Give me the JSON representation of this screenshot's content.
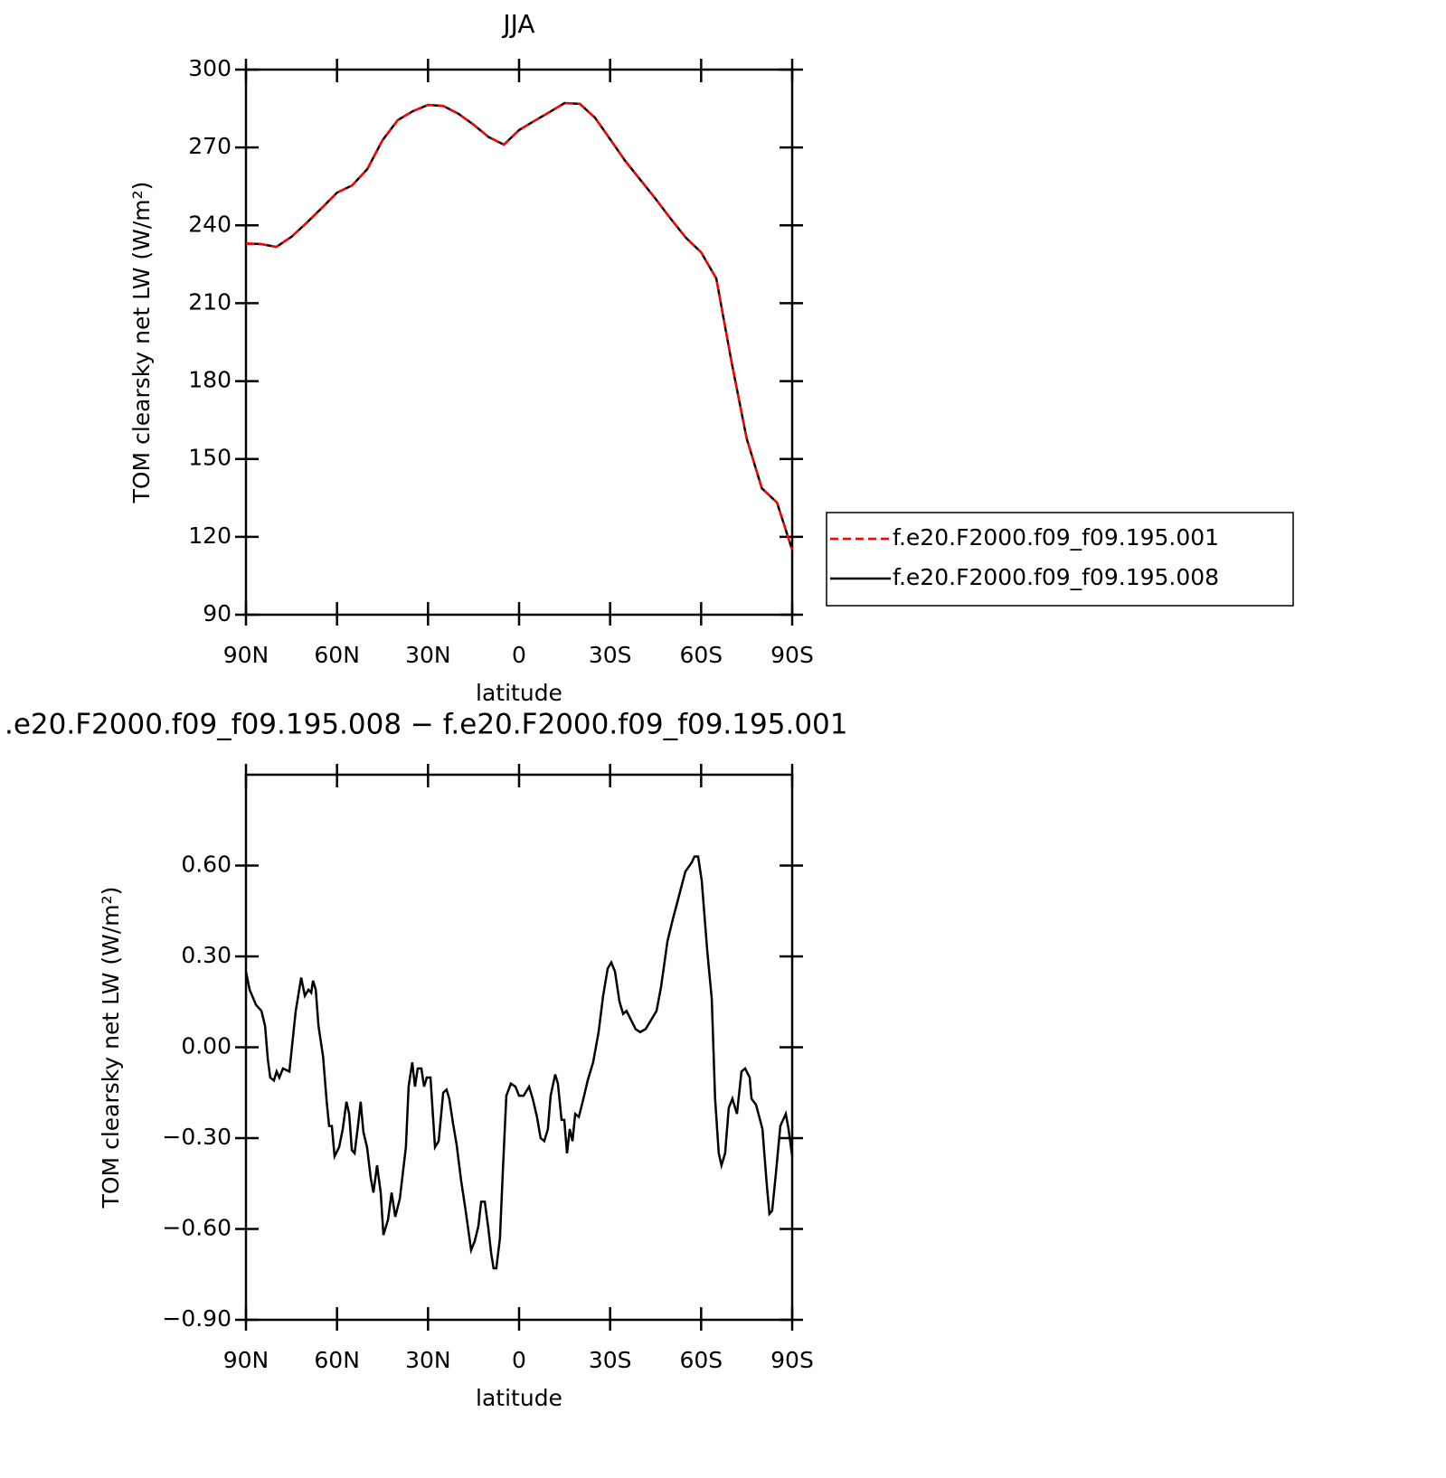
{
  "chart_data": [
    {
      "type": "line",
      "title": "JJA",
      "xlabel": "latitude",
      "ylabel": "TOM clearsky net LW (W/m²)",
      "xlim": [
        90,
        -90
      ],
      "xticks": [
        {
          "value": 90,
          "label": "90N"
        },
        {
          "value": 60,
          "label": "60N"
        },
        {
          "value": 30,
          "label": "30N"
        },
        0,
        {
          "value": -30,
          "label": "30S"
        },
        {
          "value": -60,
          "label": "60S"
        },
        {
          "value": -90,
          "label": "90S"
        }
      ],
      "ylim": [
        90,
        300
      ],
      "yticks": [
        90,
        120,
        150,
        180,
        210,
        240,
        270,
        300
      ],
      "x": [
        90,
        85,
        80,
        75,
        70,
        65,
        60,
        55,
        50,
        45,
        40,
        35,
        30,
        25,
        20,
        15,
        10,
        5,
        0,
        -5,
        -10,
        -15,
        -20,
        -25,
        -30,
        -35,
        -40,
        -45,
        -50,
        -55,
        -60,
        -65,
        -70,
        -75,
        -80,
        -85,
        -90
      ],
      "legend": "right",
      "series": [
        {
          "name": "f.e20.F2000.f09_f09.195.001",
          "color": "#ff0000",
          "linestyle": "dashed",
          "values": [
            233,
            232.8,
            231.7,
            235.6,
            241,
            246.7,
            252.6,
            255.4,
            261.7,
            272.8,
            280.5,
            284,
            286.4,
            286,
            283,
            278.8,
            274,
            271.1,
            276.7,
            280.2,
            283.6,
            287.1,
            286.8,
            281.5,
            273.2,
            264.8,
            257.5,
            250.2,
            242.5,
            235.2,
            229.6,
            219.5,
            187.5,
            157.9,
            138.7,
            133.2,
            115
          ]
        },
        {
          "name": "f.e20.F2000.f09_f09.195.008",
          "color": "#000000",
          "linestyle": "solid",
          "values": [
            233,
            232.8,
            231.7,
            235.6,
            241,
            246.7,
            252.6,
            255.4,
            261.7,
            272.8,
            280.5,
            284,
            286.4,
            286,
            283,
            278.8,
            274,
            271.1,
            276.7,
            280.2,
            283.6,
            287.1,
            286.8,
            281.5,
            273.2,
            264.8,
            257.5,
            250.2,
            242.5,
            235.2,
            229.6,
            219.5,
            187.5,
            157.9,
            138.7,
            133.2,
            115
          ]
        }
      ]
    },
    {
      "type": "line",
      "title": ".e20.F2000.f09_f09.195.008 − f.e20.F2000.f09_f09.195.001",
      "xlabel": "latitude",
      "ylabel": "TOM clearsky net LW (W/m²)",
      "xlim": [
        90,
        -90
      ],
      "xticks": [
        {
          "value": 90,
          "label": "90N"
        },
        {
          "value": 60,
          "label": "60N"
        },
        {
          "value": 30,
          "label": "30N"
        },
        0,
        {
          "value": -30,
          "label": "30S"
        },
        {
          "value": -60,
          "label": "60S"
        },
        {
          "value": -90,
          "label": "90S"
        }
      ],
      "ylim": [
        -0.9,
        0.9
      ],
      "yticks": [
        {
          "value": -0.9,
          "label": "−0.90"
        },
        {
          "value": -0.6,
          "label": "−0.60"
        },
        {
          "value": -0.3,
          "label": "−0.30"
        },
        {
          "value": 0,
          "label": "0.00"
        },
        {
          "value": 0.3,
          "label": "0.30"
        },
        {
          "value": 0.6,
          "label": "0.60"
        }
      ],
      "x": [
        90,
        88.8,
        86.7,
        84.9,
        83.7,
        82.8,
        82.0,
        80.8,
        79.9,
        79.0,
        77.8,
        75.7,
        73.6,
        71.8,
        70.6,
        69.4,
        68.5,
        67.9,
        67.0,
        66.1,
        64.6,
        63.4,
        62.6,
        61.7,
        60.8,
        59.3,
        58.1,
        56.9,
        56.0,
        55.1,
        54.2,
        53.1,
        52.2,
        51.3,
        50.1,
        48.9,
        48.0,
        46.8,
        45.6,
        44.7,
        43.2,
        42.0,
        40.8,
        39.3,
        37.3,
        36.4,
        35.2,
        34.3,
        33.4,
        32.2,
        31.3,
        30.4,
        29.2,
        27.7,
        26.5,
        25.0,
        23.9,
        23.0,
        21.8,
        20.6,
        19.1,
        17.6,
        15.8,
        14.6,
        13.4,
        12.5,
        11.3,
        10.1,
        9.2,
        8.4,
        7.5,
        6.3,
        5.4,
        4.2,
        2.7,
        1.2,
        0,
        -1.5,
        -3.3,
        -4.5,
        -5.9,
        -7.1,
        -8.3,
        -9.5,
        -10.4,
        -11.9,
        -12.8,
        -14.0,
        -14.9,
        -15.8,
        -16.7,
        -17.6,
        -18.5,
        -19.7,
        -21.2,
        -22.6,
        -24.4,
        -26.2,
        -27.7,
        -29.2,
        -30.4,
        -31.6,
        -33.1,
        -34.3,
        -35.4,
        -36.9,
        -38.4,
        -39.9,
        -41.7,
        -43.5,
        -45.3,
        -46.8,
        -48.9,
        -50.6,
        -52.7,
        -54.8,
        -56.9,
        -57.8,
        -59.0,
        -60.2,
        -62.0,
        -63.5,
        -64.6,
        -65.8,
        -66.7,
        -67.9,
        -69.1,
        -70.3,
        -71.8,
        -73.3,
        -74.5,
        -76.0,
        -76.6,
        -78.1,
        -80.2,
        -81.6,
        -82.5,
        -83.4,
        -84.6,
        -86.1,
        -87.9,
        -88.8,
        -90
      ],
      "series": [
        {
          "color": "#000000",
          "linestyle": "solid",
          "values": [
            0.25,
            0.19,
            0.14,
            0.12,
            0.07,
            -0.04,
            -0.1,
            -0.11,
            -0.08,
            -0.1,
            -0.07,
            -0.08,
            0.12,
            0.23,
            0.17,
            0.19,
            0.18,
            0.22,
            0.19,
            0.07,
            -0.03,
            -0.18,
            -0.26,
            -0.26,
            -0.36,
            -0.33,
            -0.27,
            -0.18,
            -0.22,
            -0.34,
            -0.35,
            -0.26,
            -0.18,
            -0.28,
            -0.33,
            -0.43,
            -0.48,
            -0.39,
            -0.48,
            -0.62,
            -0.57,
            -0.48,
            -0.56,
            -0.5,
            -0.33,
            -0.13,
            -0.05,
            -0.13,
            -0.07,
            -0.07,
            -0.13,
            -0.1,
            -0.1,
            -0.33,
            -0.31,
            -0.15,
            -0.14,
            -0.17,
            -0.25,
            -0.32,
            -0.44,
            -0.54,
            -0.67,
            -0.64,
            -0.59,
            -0.51,
            -0.51,
            -0.6,
            -0.68,
            -0.73,
            -0.73,
            -0.63,
            -0.42,
            -0.16,
            -0.12,
            -0.13,
            -0.16,
            -0.16,
            -0.13,
            -0.17,
            -0.23,
            -0.3,
            -0.31,
            -0.27,
            -0.16,
            -0.09,
            -0.12,
            -0.24,
            -0.24,
            -0.35,
            -0.27,
            -0.31,
            -0.22,
            -0.23,
            -0.17,
            -0.11,
            -0.05,
            0.05,
            0.17,
            0.26,
            0.28,
            0.25,
            0.15,
            0.11,
            0.12,
            0.09,
            0.06,
            0.05,
            0.06,
            0.09,
            0.12,
            0.2,
            0.35,
            0.42,
            0.5,
            0.58,
            0.61,
            0.63,
            0.63,
            0.55,
            0.32,
            0.16,
            -0.17,
            -0.35,
            -0.39,
            -0.35,
            -0.2,
            -0.17,
            -0.22,
            -0.08,
            -0.07,
            -0.1,
            -0.17,
            -0.19,
            -0.27,
            -0.45,
            -0.55,
            -0.54,
            -0.42,
            -0.26,
            -0.22,
            -0.27,
            -0.36
          ]
        }
      ]
    }
  ]
}
